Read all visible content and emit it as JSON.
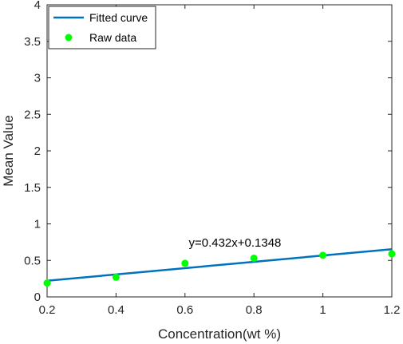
{
  "chart_data": {
    "type": "scatter",
    "title": "",
    "xlabel": "Concentration(wt %)",
    "ylabel": "Mean Value",
    "xlim": [
      0.2,
      1.2
    ],
    "ylim": [
      0,
      4
    ],
    "xticks": [
      0.2,
      0.4,
      0.6,
      0.8,
      1,
      1.2
    ],
    "xtick_labels": [
      "0.2",
      "0.4",
      "0.6",
      "0.8",
      "1",
      "1.2"
    ],
    "yticks": [
      0,
      0.5,
      1,
      1.5,
      2,
      2.5,
      3,
      3.5,
      4
    ],
    "ytick_labels": [
      "0",
      "0.5",
      "1",
      "1.5",
      "2",
      "2.5",
      "3",
      "3.5",
      "4"
    ],
    "grid": false,
    "legend": "top-left",
    "series": [
      {
        "name": "Fitted curve",
        "kind": "line",
        "color": "#0072BD",
        "x": [
          0.2,
          1.2
        ],
        "y": [
          0.2212,
          0.6532
        ]
      },
      {
        "name": "Raw data",
        "kind": "scatter",
        "color": "#00FF00",
        "x": [
          0.2,
          0.4,
          0.6,
          0.8,
          1.0,
          1.2
        ],
        "y": [
          0.19,
          0.27,
          0.46,
          0.53,
          0.57,
          0.59
        ]
      }
    ],
    "annotations": [
      {
        "text": "y=0.432x+0.1348",
        "x": 0.745,
        "y": 0.69
      }
    ]
  }
}
